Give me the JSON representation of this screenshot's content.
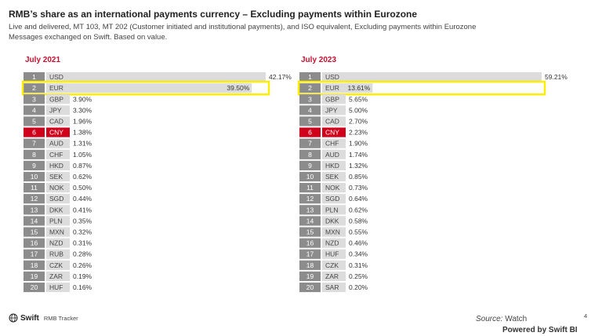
{
  "header": {
    "title": "RMB’s share as an international payments currency – Excluding payments within Eurozone",
    "subtitle": "Live and delivered, MT 103, MT 202 (Customer initiated and institutional payments), and ISO equivalent, Excluding payments within Eurozone Messages exchanged on Swift. Based on value."
  },
  "colors": {
    "rank_box": "#8c8c8c",
    "bar": "#dcdcdc",
    "highlight": "#d0021b",
    "outline": "#ffed00"
  },
  "chart_data": [
    {
      "type": "bar",
      "orientation": "horizontal",
      "title": "July 2021",
      "highlight_category": "CNY",
      "outlined_category": "EUR",
      "ranks": [
        "1",
        "2",
        "3",
        "4",
        "5",
        "6",
        "7",
        "8",
        "9",
        "10",
        "11",
        "12",
        "13",
        "14",
        "15",
        "16",
        "17",
        "18",
        "19",
        "20"
      ],
      "categories": [
        "USD",
        "EUR",
        "GBP",
        "JPY",
        "CAD",
        "CNY",
        "AUD",
        "CHF",
        "HKD",
        "SEK",
        "NOK",
        "SGD",
        "DKK",
        "PLN",
        "MXN",
        "NZD",
        "RUB",
        "CZK",
        "ZAR",
        "HUF"
      ],
      "values": [
        42.17,
        39.5,
        3.9,
        3.3,
        1.96,
        1.38,
        1.31,
        1.05,
        0.87,
        0.62,
        0.5,
        0.44,
        0.41,
        0.35,
        0.32,
        0.31,
        0.28,
        0.26,
        0.19,
        0.16
      ],
      "value_labels": [
        "42.17%",
        "39.50%",
        "3.90%",
        "3.30%",
        "1.96%",
        "1.38%",
        "1.31%",
        "1.05%",
        "0.87%",
        "0.62%",
        "0.50%",
        "0.44%",
        "0.41%",
        "0.35%",
        "0.32%",
        "0.31%",
        "0.28%",
        "0.26%",
        "0.19%",
        "0.16%"
      ]
    },
    {
      "type": "bar",
      "orientation": "horizontal",
      "title": "July 2023",
      "highlight_category": "CNY",
      "outlined_category": "EUR",
      "ranks": [
        "1",
        "2",
        "3",
        "4",
        "5",
        "6",
        "7",
        "8",
        "9",
        "10",
        "11",
        "12",
        "13",
        "14",
        "15",
        "16",
        "17",
        "18",
        "19",
        "20"
      ],
      "categories": [
        "USD",
        "EUR",
        "GBP",
        "JPY",
        "CAD",
        "CNY",
        "CHF",
        "AUD",
        "HKD",
        "SEK",
        "NOK",
        "SGD",
        "PLN",
        "DKK",
        "MXN",
        "NZD",
        "HUF",
        "CZK",
        "ZAR",
        "SAR"
      ],
      "values": [
        59.21,
        13.61,
        5.65,
        5.0,
        2.7,
        2.23,
        1.9,
        1.74,
        1.32,
        0.85,
        0.73,
        0.64,
        0.62,
        0.58,
        0.55,
        0.46,
        0.34,
        0.31,
        0.25,
        0.2
      ],
      "value_labels": [
        "59.21%",
        "13.61%",
        "5.65%",
        "5.00%",
        "2.70%",
        "2.23%",
        "1.90%",
        "1.74%",
        "1.32%",
        "0.85%",
        "0.73%",
        "0.64%",
        "0.62%",
        "0.58%",
        "0.55%",
        "0.46%",
        "0.34%",
        "0.31%",
        "0.25%",
        "0.20%"
      ]
    }
  ],
  "footer": {
    "logo_icon": "globe-icon",
    "brand": "Swift",
    "product": "RMB Tracker",
    "page_number": "4",
    "source_label": "Source:",
    "source_value": "Watch",
    "powered_by": "Powered by Swift BI"
  }
}
